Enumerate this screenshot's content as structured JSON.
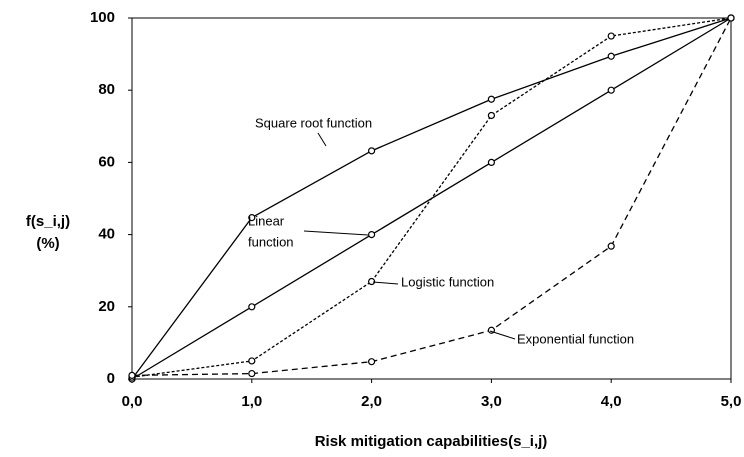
{
  "chart_data": {
    "type": "line",
    "ylabel_lines": [
      "f(s_i,j)",
      "(%)"
    ],
    "xlabel": "Risk mitigation capabilities(s_i,j)",
    "x": [
      0,
      1,
      2,
      3,
      4,
      5
    ],
    "xlim": [
      0,
      5
    ],
    "xticks": [
      {
        "value": 0,
        "label": "0,0"
      },
      {
        "value": 1,
        "label": "1,0"
      },
      {
        "value": 2,
        "label": "2,0"
      },
      {
        "value": 3,
        "label": "3,0"
      },
      {
        "value": 4,
        "label": "4,0"
      },
      {
        "value": 5,
        "label": "5,0"
      }
    ],
    "ylim": [
      0,
      100
    ],
    "yticks": [
      0,
      20,
      40,
      60,
      80,
      100
    ],
    "grid": false,
    "series": [
      {
        "color": "#000000",
        "dash": "solid",
        "values": [
          0,
          44.7,
          63.2,
          77.5,
          89.4,
          100
        ]
      },
      {
        "color": "#000000",
        "dash": "solid",
        "values": [
          0,
          20,
          40,
          60,
          80,
          100
        ]
      },
      {
        "color": "#000000",
        "dash": "dotted",
        "values": [
          0.5,
          5,
          27,
          73,
          95,
          100
        ]
      },
      {
        "color": "#000000",
        "dash": "dashed",
        "values": [
          1,
          1.5,
          4.8,
          13.5,
          36.8,
          100
        ]
      }
    ],
    "annotations": [
      {
        "lines": [
          "Square root function"
        ]
      },
      {
        "lines": [
          "Linear",
          "function"
        ]
      },
      {
        "lines": [
          "Logistic function"
        ]
      },
      {
        "lines": [
          "Exponential function"
        ]
      }
    ]
  }
}
